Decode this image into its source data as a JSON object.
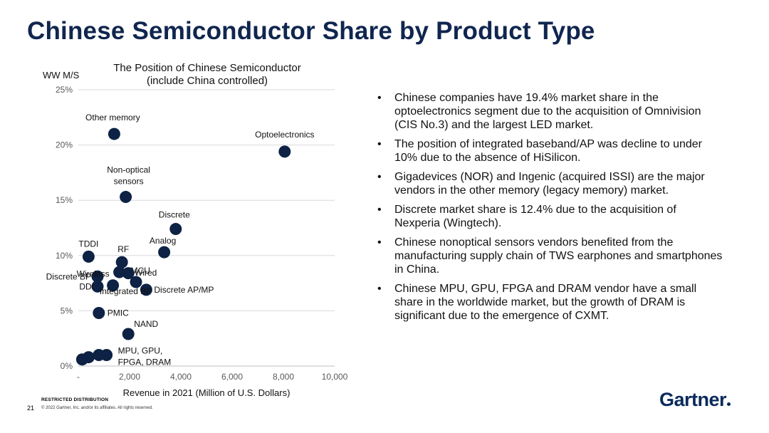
{
  "slide": {
    "title": "Chinese Semiconductor Share by Product Type",
    "restricted": "RESTRICTED DISTRIBUTION",
    "page_number": "21",
    "copyright": "© 2022 Gartner, Inc. and/or its affiliates. All rights reserved.",
    "logo_text": "Gartner"
  },
  "bullets": [
    "Chinese companies have 19.4% market share in the optoelectronics segment due to the acquisition of Omnivision (CIS No.3) and the largest LED market.",
    "The position of integrated baseband/AP was decline to under 10% due to the absence of HiSilicon.",
    "Gigadevices (NOR) and Ingenic (acquired ISSI) are the major vendors in the other memory (legacy memory) market.",
    "Discrete market share is 12.4% due to the acquisition of Nexperia (Wingtech).",
    "Chinese nonoptical sensors vendors benefited from the manufacturing supply chain of TWS earphones and smartphones in China.",
    "Chinese MPU, GPU, FPGA and DRAM vendor have a small share in the worldwide market, but the growth of DRAM is significant due to the emergence of CXMT."
  ],
  "chart_data": {
    "type": "scatter",
    "title_lines": [
      "The Position of Chinese Semiconductor",
      "(include China controlled)"
    ],
    "ylabel": "WW M/S",
    "xlabel": "Revenue in 2021 (Million of U.S. Dollars)",
    "xlim": [
      0,
      10000
    ],
    "ylim": [
      0,
      25
    ],
    "xticks": [
      0,
      2000,
      4000,
      6000,
      8000,
      10000
    ],
    "xtick_labels": [
      "-",
      "2,000",
      "4,000",
      "6,000",
      "8,000",
      "10,000"
    ],
    "yticks": [
      0,
      5,
      10,
      15,
      20,
      25
    ],
    "ytick_labels": [
      "0%",
      "5%",
      "10%",
      "15%",
      "20%",
      "25%"
    ],
    "marker_color": "#0d2244",
    "points": [
      {
        "x": 1400,
        "y": 21.0,
        "lines": [
          "Other memory"
        ]
      },
      {
        "x": 8050,
        "y": 19.4,
        "lines": [
          "Optoelectronics"
        ]
      },
      {
        "x": 1850,
        "y": 15.3,
        "lines": [
          "Non-optical",
          "sensors"
        ]
      },
      {
        "x": 3800,
        "y": 12.4,
        "lines": [
          "Discrete"
        ]
      },
      {
        "x": 3350,
        "y": 10.3,
        "lines": [
          "Analog"
        ]
      },
      {
        "x": 400,
        "y": 9.9,
        "lines": [
          "TDDI"
        ]
      },
      {
        "x": 1700,
        "y": 9.4,
        "lines": [
          "RF"
        ]
      },
      {
        "x": 1600,
        "y": 8.5,
        "lines": [
          "MCU"
        ]
      },
      {
        "x": 1950,
        "y": 8.4,
        "lines": []
      },
      {
        "x": 2250,
        "y": 7.6,
        "lines": [
          "Wired"
        ]
      },
      {
        "x": 750,
        "y": 8.1,
        "lines": [
          "Discrete BP"
        ]
      },
      {
        "x": 1350,
        "y": 7.3,
        "lines": [
          "Wireless"
        ]
      },
      {
        "x": 750,
        "y": 7.2,
        "lines": [
          "DDI"
        ]
      },
      {
        "x": 2650,
        "y": 6.9,
        "lines": [
          "Discrete AP/MP"
        ]
      },
      {
        "x": 800,
        "y": 4.8,
        "lines": [
          "PMIC"
        ]
      },
      {
        "x": 1950,
        "y": 2.9,
        "lines": [
          "NAND"
        ]
      },
      {
        "x": 150,
        "y": 0.6,
        "lines": []
      },
      {
        "x": 400,
        "y": 0.8,
        "lines": []
      },
      {
        "x": 800,
        "y": 1.0,
        "lines": []
      },
      {
        "x": 1100,
        "y": 1.0,
        "lines": [
          "MPU, GPU,",
          "FPGA, DRAM"
        ]
      }
    ],
    "annotations": [
      {
        "text": "Integrated BP",
        "x": 600,
        "y": 6.0
      }
    ]
  }
}
